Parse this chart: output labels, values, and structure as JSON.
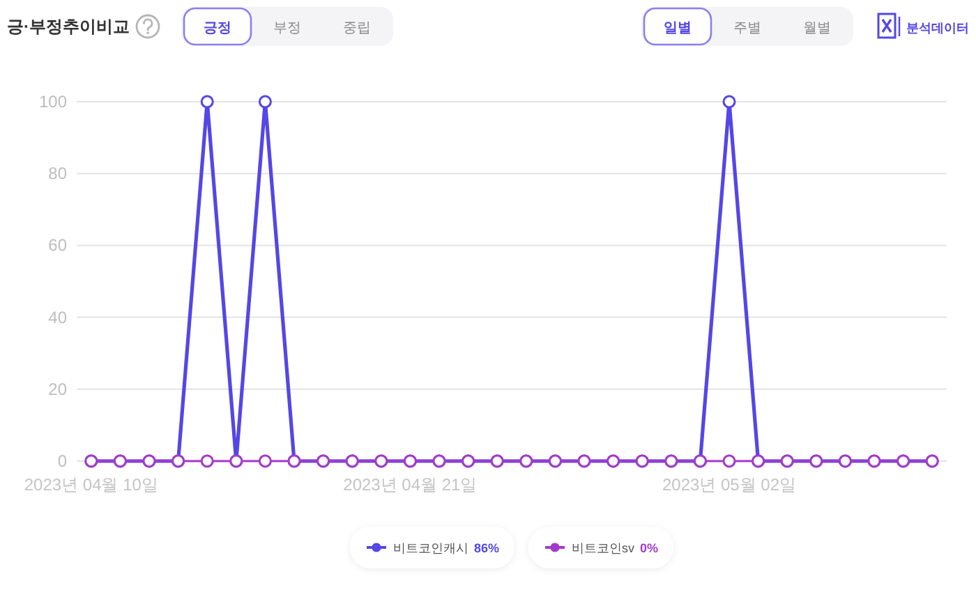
{
  "chart_data": {
    "type": "line",
    "title": "긍·부정추이비교",
    "categories": [
      "2023년 04월 10일",
      null,
      null,
      null,
      null,
      null,
      null,
      null,
      null,
      null,
      null,
      "2023년 04월 21일",
      null,
      null,
      null,
      null,
      null,
      null,
      null,
      null,
      null,
      null,
      "2023년 05월 02일",
      null,
      null,
      null,
      null,
      null,
      null,
      null
    ],
    "series": [
      {
        "name": "비트코인캐시 86%",
        "color": "#5546e6",
        "values": [
          0,
          0,
          0,
          0,
          100,
          0,
          100,
          0,
          0,
          0,
          0,
          0,
          0,
          0,
          0,
          0,
          0,
          0,
          0,
          0,
          0,
          0,
          100,
          0,
          0,
          0,
          0,
          0,
          0,
          0
        ]
      },
      {
        "name": "비트코인sv 0%",
        "color": "#a33acb",
        "values": [
          0,
          0,
          0,
          0,
          0,
          0,
          0,
          0,
          0,
          0,
          0,
          0,
          0,
          0,
          0,
          0,
          0,
          0,
          0,
          0,
          0,
          0,
          0,
          0,
          0,
          0,
          0,
          0,
          0,
          0
        ]
      }
    ],
    "ylim": [
      0,
      100
    ],
    "yticks": [
      0,
      20,
      40,
      60,
      80,
      100
    ],
    "grid": "y",
    "legend": "bottom",
    "marker": "circle",
    "line_style": "solid",
    "annotations": [
      "긍정",
      "부정",
      "중립",
      "일별",
      "주별",
      "월별",
      "분석데이터"
    ]
  }
}
